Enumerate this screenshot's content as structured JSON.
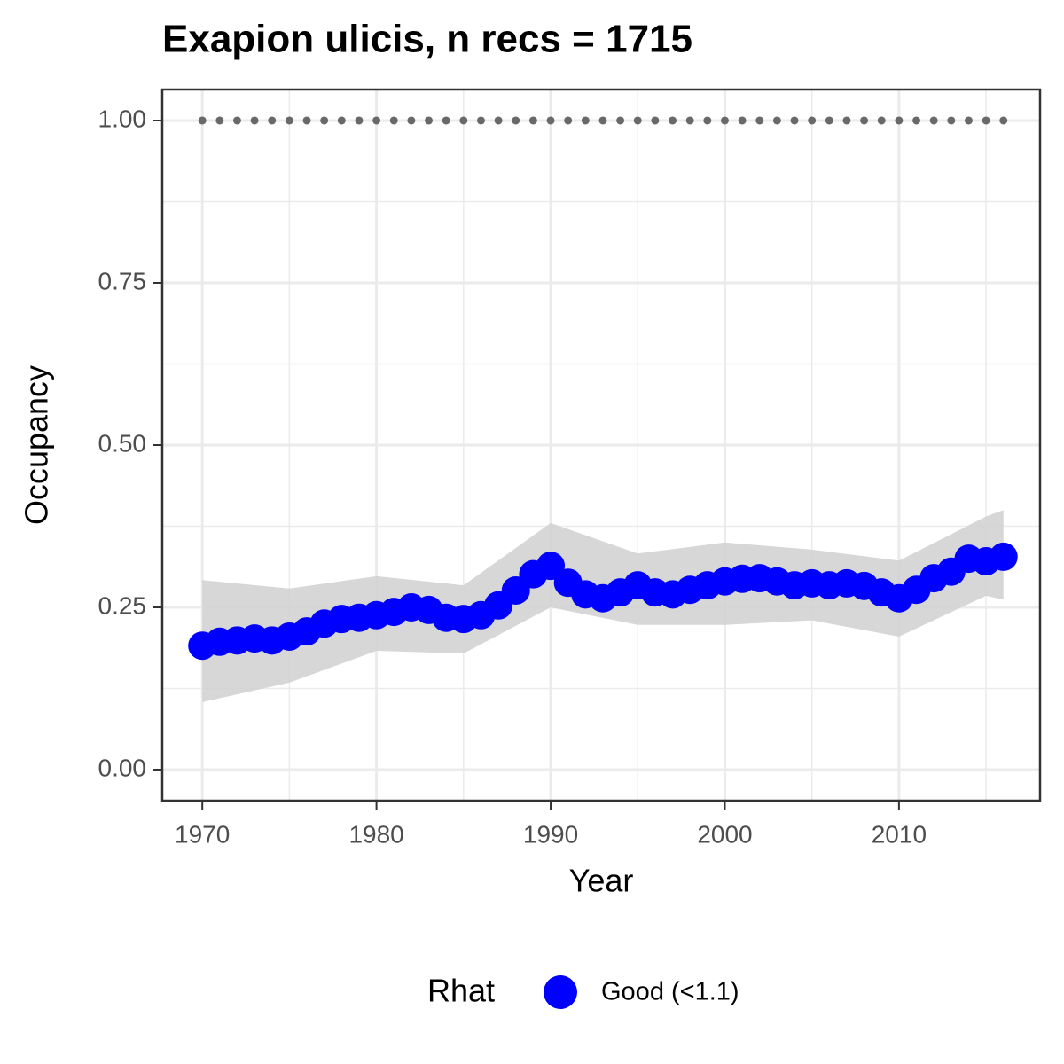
{
  "chart_data": {
    "type": "line",
    "title": "Exapion ulicis, n recs = 1715",
    "x_label": "Year",
    "y_label": "Occupancy",
    "x": [
      1970,
      1971,
      1972,
      1973,
      1974,
      1975,
      1976,
      1977,
      1978,
      1979,
      1980,
      1981,
      1982,
      1983,
      1984,
      1985,
      1986,
      1987,
      1988,
      1989,
      1990,
      1991,
      1992,
      1993,
      1994,
      1995,
      1996,
      1997,
      1998,
      1999,
      2000,
      2001,
      2002,
      2003,
      2004,
      2005,
      2006,
      2007,
      2008,
      2009,
      2010,
      2011,
      2012,
      2013,
      2014,
      2015,
      2016
    ],
    "series": [
      {
        "name": "Good (<1.1)",
        "color": "#0000ff",
        "values": [
          0.191,
          0.197,
          0.199,
          0.202,
          0.199,
          0.205,
          0.213,
          0.225,
          0.232,
          0.234,
          0.238,
          0.243,
          0.25,
          0.246,
          0.234,
          0.232,
          0.238,
          0.253,
          0.276,
          0.301,
          0.314,
          0.288,
          0.27,
          0.264,
          0.273,
          0.284,
          0.273,
          0.27,
          0.277,
          0.284,
          0.29,
          0.294,
          0.295,
          0.29,
          0.284,
          0.287,
          0.284,
          0.287,
          0.283,
          0.273,
          0.264,
          0.277,
          0.295,
          0.305,
          0.325,
          0.321,
          0.328
        ]
      }
    ],
    "band": {
      "color": "#d3d3d3",
      "x": [
        1970,
        1975,
        1980,
        1985,
        1990,
        1995,
        2000,
        2005,
        2010,
        2015,
        2016
      ],
      "lower": [
        0.104,
        0.134,
        0.183,
        0.179,
        0.25,
        0.223,
        0.223,
        0.23,
        0.205,
        0.268,
        0.262
      ],
      "upper": [
        0.292,
        0.279,
        0.298,
        0.284,
        0.38,
        0.333,
        0.35,
        0.339,
        0.322,
        0.39,
        0.4
      ]
    },
    "hline": 1,
    "hline_color": "#696969",
    "legend_title": "Rhat",
    "legend_position": "bottom",
    "grid": true,
    "xlim": [
      1967.7,
      2018.1
    ],
    "ylim": [
      -0.0478,
      1.0478
    ],
    "xticks": [
      1970,
      1980,
      1990,
      2000,
      2010
    ],
    "yticks": [
      {
        "value": 0,
        "label": "0.00"
      },
      {
        "value": 0.25,
        "label": "0.25"
      },
      {
        "value": 0.5,
        "label": "0.50"
      },
      {
        "value": 0.75,
        "label": "0.75"
      },
      {
        "value": 1,
        "label": "1.00"
      }
    ]
  }
}
